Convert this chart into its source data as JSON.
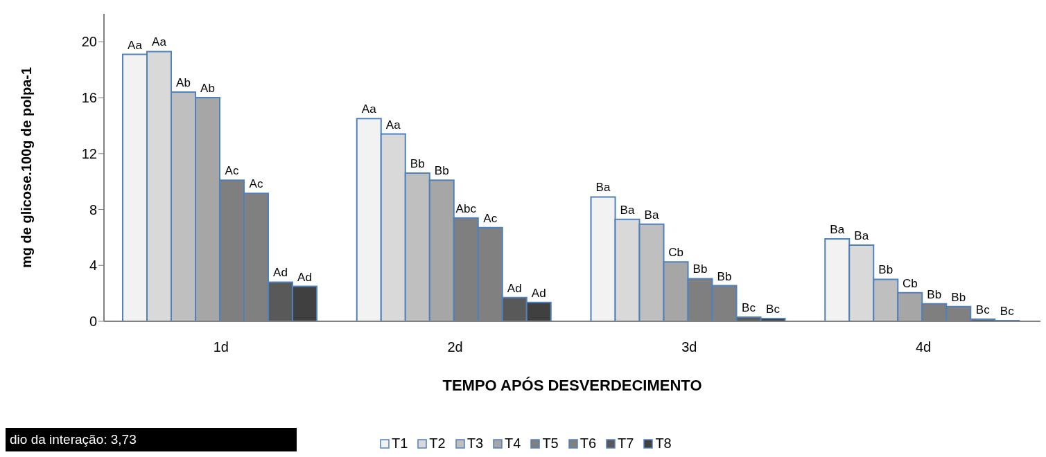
{
  "chart_data": {
    "type": "bar",
    "xlabel": "TEMPO APÓS DESVERDECIMENTO",
    "ylabel": "mg de glicose.100g de polpa-1",
    "categories": [
      "1d",
      "2d",
      "3d",
      "4d"
    ],
    "ylim": [
      0,
      22
    ],
    "yticks": [
      0,
      4,
      8,
      12,
      16,
      20
    ],
    "legend": "bottom",
    "series": [
      {
        "name": "T1",
        "color": "#f2f2f2",
        "values": [
          19.1,
          14.5,
          8.9,
          5.9
        ],
        "value_labels": [
          "Aa",
          "Aa",
          "Ba",
          "Ba"
        ]
      },
      {
        "name": "T2",
        "color": "#d9d9d9",
        "values": [
          19.3,
          13.4,
          7.3,
          5.45
        ],
        "value_labels": [
          "Aa",
          "Aa",
          "Ba",
          "Ba"
        ]
      },
      {
        "name": "T3",
        "color": "#bfbfbf",
        "values": [
          16.4,
          10.6,
          6.95,
          3.0
        ],
        "value_labels": [
          "Ab",
          "Bb",
          "Ba",
          "Bb"
        ]
      },
      {
        "name": "T4",
        "color": "#a6a6a6",
        "values": [
          16.0,
          10.1,
          4.25,
          2.05
        ],
        "value_labels": [
          "Ab",
          "Bb",
          "Cb",
          "Cb"
        ]
      },
      {
        "name": "T5",
        "color": "#7f7f7f",
        "values": [
          10.1,
          7.4,
          3.05,
          1.25
        ],
        "value_labels": [
          "Ac",
          "Abc",
          "Bb",
          "Bb"
        ]
      },
      {
        "name": "T6",
        "color": "#808080",
        "values": [
          9.15,
          6.7,
          2.55,
          1.05
        ],
        "value_labels": [
          "Ac",
          "Ac",
          "Bb",
          "Bb"
        ]
      },
      {
        "name": "T7",
        "color": "#595959",
        "values": [
          2.8,
          1.7,
          0.3,
          0.15
        ],
        "value_labels": [
          "Ad",
          "Ad",
          "Bc",
          "Bc"
        ]
      },
      {
        "name": "T8",
        "color": "#404040",
        "values": [
          2.5,
          1.35,
          0.2,
          0.05
        ],
        "value_labels": [
          "Ad",
          "Ad",
          "Bc",
          "Bc"
        ]
      }
    ],
    "annotations": [
      "dio da interação: 3,73"
    ]
  }
}
